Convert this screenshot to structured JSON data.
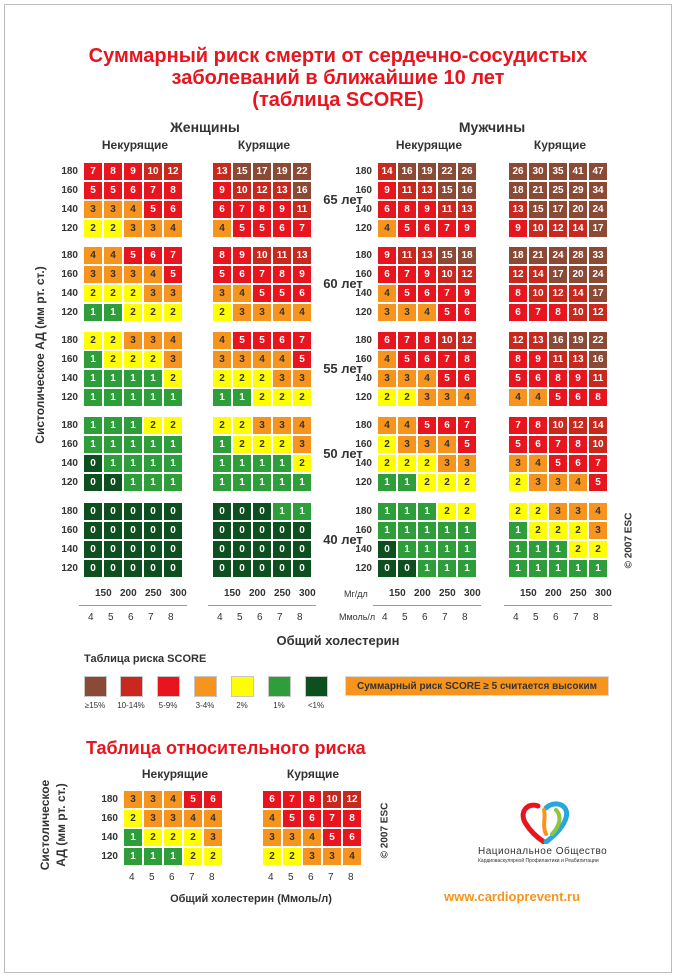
{
  "title": [
    "Суммарный риск смерти от сердечно-сосудистых",
    "заболеваний в ближайшие 10 лет",
    "(таблица SCORE)"
  ],
  "headers": {
    "women": "Женщины",
    "men": "Мужчины",
    "nonsmoking": "Некурящие",
    "smoking": "Курящие"
  },
  "y_axis_label": "Систолическое АД (мм рт. ст.)",
  "x_axis_label": "Общий холестерин",
  "units": {
    "mgdl": "Мг/дл",
    "mmol": "Ммоль/л"
  },
  "copyright": "© 2007 ESC",
  "legend_title": "Таблица риска SCORE",
  "banner": "Суммарный риск SCORE ≥ 5 считается высоким",
  "relative": {
    "title": "Таблица относительного риска",
    "y_label_line1": "Систолическое",
    "y_label_line2": "АД (мм рт. ст.)",
    "x_label": "Общий холестерин (Ммоль/л)",
    "copyright": "© 2007 ESC"
  },
  "logo": {
    "name": "Национальное Общество",
    "subtitle": "Кардиоваскулярной Профилактики и Реабилитации"
  },
  "url": "www.cardioprevent.ru",
  "colors": {
    "c15": "#8b4a36",
    "c10": "#c8281e",
    "c5": "#e8141e",
    "c3": "#f7941d",
    "c2": "#ffff00",
    "c1": "#2e9e3a",
    "c0": "#0d4f1e"
  },
  "chart_data": [
    {
      "type": "heatmap",
      "title": "SCORE",
      "x_mmol": [
        "4",
        "5",
        "6",
        "7",
        "8"
      ],
      "x_mgdl": [
        "150",
        "200",
        "250",
        "300"
      ],
      "y_bp": [
        "180",
        "160",
        "140",
        "120"
      ],
      "ages": [
        "65 лет",
        "60 лет",
        "55 лет",
        "50 лет",
        "40 лет"
      ],
      "legend": [
        {
          "label": "≥15%",
          "color": "#8b4a36"
        },
        {
          "label": "10-14%",
          "color": "#c8281e"
        },
        {
          "label": "5-9%",
          "color": "#e8141e"
        },
        {
          "label": "3-4%",
          "color": "#f7941d"
        },
        {
          "label": "2%",
          "color": "#ffff00"
        },
        {
          "label": "1%",
          "color": "#2e9e3a"
        },
        {
          "label": "<1%",
          "color": "#0d4f1e"
        }
      ],
      "panels": {
        "women_nonsmoking": [
          [
            [
              7,
              8,
              9,
              10,
              12
            ],
            [
              5,
              5,
              6,
              7,
              8
            ],
            [
              3,
              3,
              4,
              5,
              6
            ],
            [
              2,
              2,
              3,
              3,
              4
            ]
          ],
          [
            [
              4,
              4,
              5,
              6,
              7
            ],
            [
              3,
              3,
              3,
              4,
              5
            ],
            [
              2,
              2,
              2,
              3,
              3
            ],
            [
              1,
              1,
              2,
              2,
              2
            ]
          ],
          [
            [
              2,
              2,
              3,
              3,
              4
            ],
            [
              1,
              2,
              2,
              2,
              3
            ],
            [
              1,
              1,
              1,
              1,
              2
            ],
            [
              1,
              1,
              1,
              1,
              1
            ]
          ],
          [
            [
              1,
              1,
              1,
              2,
              2
            ],
            [
              1,
              1,
              1,
              1,
              1
            ],
            [
              0,
              1,
              1,
              1,
              1
            ],
            [
              0,
              0,
              1,
              1,
              1
            ]
          ],
          [
            [
              0,
              0,
              0,
              0,
              0
            ],
            [
              0,
              0,
              0,
              0,
              0
            ],
            [
              0,
              0,
              0,
              0,
              0
            ],
            [
              0,
              0,
              0,
              0,
              0
            ]
          ]
        ],
        "women_smoking": [
          [
            [
              13,
              15,
              17,
              19,
              22
            ],
            [
              9,
              10,
              12,
              13,
              16
            ],
            [
              6,
              7,
              8,
              9,
              11
            ],
            [
              4,
              5,
              5,
              6,
              7
            ]
          ],
          [
            [
              8,
              9,
              10,
              11,
              13
            ],
            [
              5,
              6,
              7,
              8,
              9
            ],
            [
              3,
              4,
              5,
              5,
              6
            ],
            [
              2,
              3,
              3,
              4,
              4
            ]
          ],
          [
            [
              4,
              5,
              5,
              6,
              7
            ],
            [
              3,
              3,
              4,
              4,
              5
            ],
            [
              2,
              2,
              2,
              3,
              3
            ],
            [
              1,
              1,
              2,
              2,
              2
            ]
          ],
          [
            [
              2,
              2,
              3,
              3,
              4
            ],
            [
              1,
              2,
              2,
              2,
              3
            ],
            [
              1,
              1,
              1,
              1,
              2
            ],
            [
              1,
              1,
              1,
              1,
              1
            ]
          ],
          [
            [
              0,
              0,
              0,
              1,
              1
            ],
            [
              0,
              0,
              0,
              0,
              0
            ],
            [
              0,
              0,
              0,
              0,
              0
            ],
            [
              0,
              0,
              0,
              0,
              0
            ]
          ]
        ],
        "men_nonsmoking": [
          [
            [
              14,
              16,
              19,
              22,
              26
            ],
            [
              9,
              11,
              13,
              15,
              16
            ],
            [
              6,
              8,
              9,
              11,
              13
            ],
            [
              4,
              5,
              6,
              7,
              9
            ]
          ],
          [
            [
              9,
              11,
              13,
              15,
              18
            ],
            [
              6,
              7,
              9,
              10,
              12
            ],
            [
              4,
              5,
              6,
              7,
              9
            ],
            [
              3,
              3,
              4,
              5,
              6
            ]
          ],
          [
            [
              6,
              7,
              8,
              10,
              12
            ],
            [
              4,
              5,
              6,
              7,
              8
            ],
            [
              3,
              3,
              4,
              5,
              6
            ],
            [
              2,
              2,
              3,
              3,
              4
            ]
          ],
          [
            [
              4,
              4,
              5,
              6,
              7
            ],
            [
              2,
              3,
              3,
              4,
              5
            ],
            [
              2,
              2,
              2,
              3,
              3
            ],
            [
              1,
              1,
              2,
              2,
              2
            ]
          ],
          [
            [
              1,
              1,
              1,
              2,
              2
            ],
            [
              1,
              1,
              1,
              1,
              1
            ],
            [
              0,
              1,
              1,
              1,
              1
            ],
            [
              0,
              0,
              1,
              1,
              1
            ]
          ]
        ],
        "men_smoking": [
          [
            [
              26,
              30,
              35,
              41,
              47
            ],
            [
              18,
              21,
              25,
              29,
              34
            ],
            [
              13,
              15,
              17,
              20,
              24
            ],
            [
              9,
              10,
              12,
              14,
              17
            ]
          ],
          [
            [
              18,
              21,
              24,
              28,
              33
            ],
            [
              12,
              14,
              17,
              20,
              24
            ],
            [
              8,
              10,
              12,
              14,
              17
            ],
            [
              6,
              7,
              8,
              10,
              12
            ]
          ],
          [
            [
              12,
              13,
              16,
              19,
              22
            ],
            [
              8,
              9,
              11,
              13,
              16
            ],
            [
              5,
              6,
              8,
              9,
              11
            ],
            [
              4,
              4,
              5,
              6,
              8
            ]
          ],
          [
            [
              7,
              8,
              10,
              12,
              14
            ],
            [
              5,
              6,
              7,
              8,
              10
            ],
            [
              3,
              4,
              5,
              6,
              7
            ],
            [
              2,
              3,
              3,
              4,
              5
            ]
          ],
          [
            [
              2,
              2,
              3,
              3,
              4
            ],
            [
              1,
              2,
              2,
              2,
              3
            ],
            [
              1,
              1,
              1,
              2,
              2
            ],
            [
              1,
              1,
              1,
              1,
              1
            ]
          ]
        ]
      }
    },
    {
      "type": "heatmap",
      "title": "Таблица относительного риска",
      "x_mmol": [
        "4",
        "5",
        "6",
        "7",
        "8"
      ],
      "y_bp": [
        "180",
        "160",
        "140",
        "120"
      ],
      "panels": {
        "nonsmoking": [
          [
            3,
            3,
            4,
            5,
            6
          ],
          [
            2,
            3,
            3,
            4,
            4
          ],
          [
            1,
            2,
            2,
            2,
            3
          ],
          [
            1,
            1,
            1,
            2,
            2
          ]
        ],
        "smoking": [
          [
            6,
            7,
            8,
            10,
            12
          ],
          [
            4,
            5,
            6,
            7,
            8
          ],
          [
            3,
            3,
            4,
            5,
            6
          ],
          [
            2,
            2,
            3,
            3,
            4
          ]
        ]
      }
    }
  ]
}
